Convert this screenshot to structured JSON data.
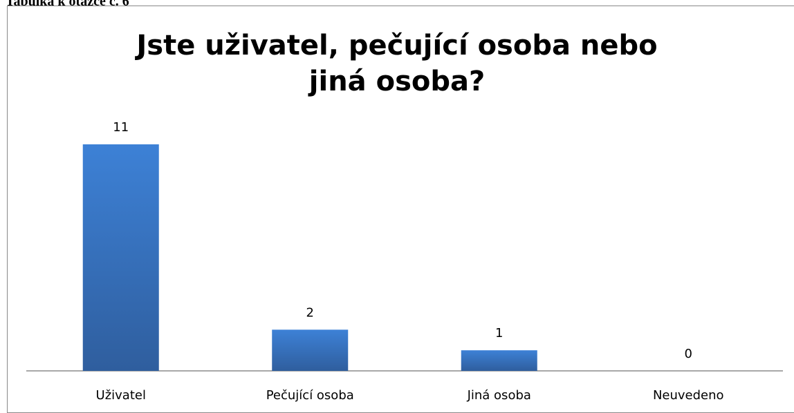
{
  "caption": "Tabulka k otázce č. 6",
  "chart_data": {
    "type": "bar",
    "title": "Jste uživatel, pečující osoba nebo jiná osoba?",
    "categories": [
      "Uživatel",
      "Pečující osoba",
      "Jiná osoba",
      "Neuvedeno"
    ],
    "values": [
      11,
      2,
      1,
      0
    ],
    "color": "#3a78c9"
  }
}
